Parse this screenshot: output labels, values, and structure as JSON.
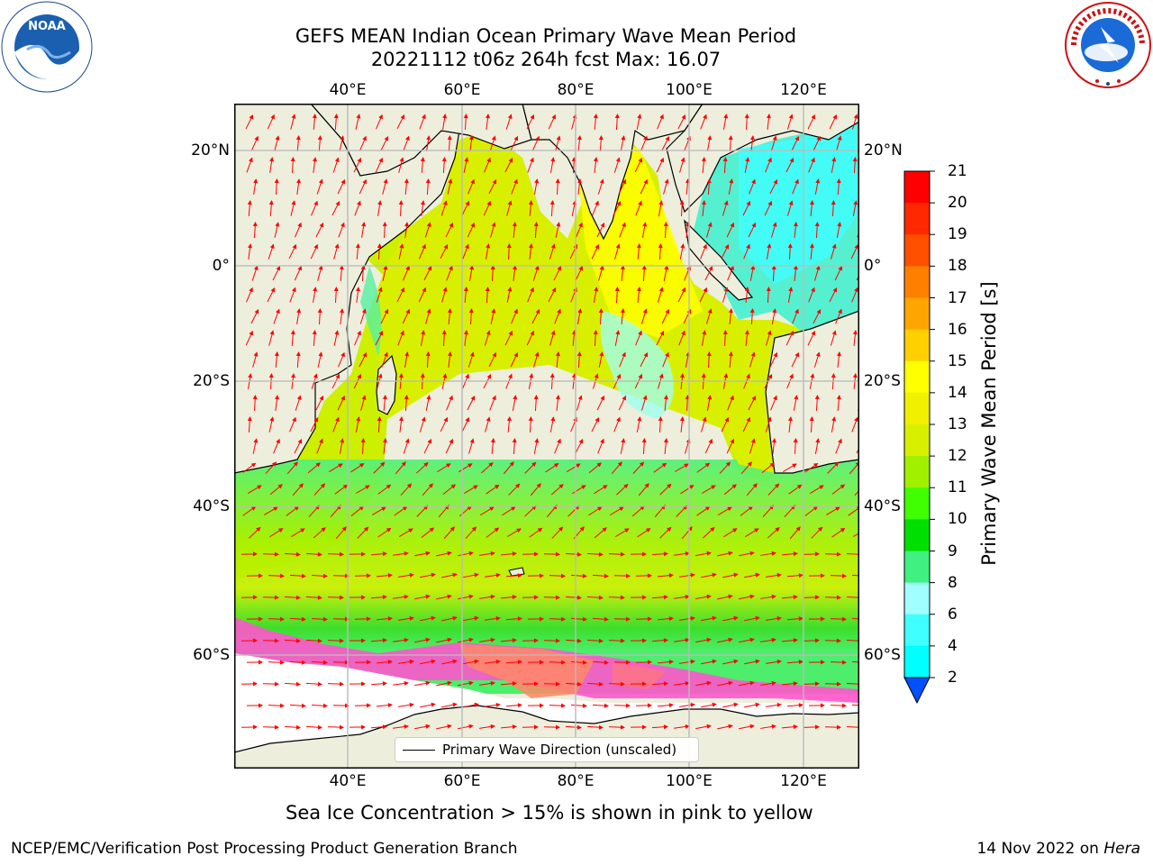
{
  "title_line1": "GEFS MEAN Indian Ocean Primary Wave Mean Period",
  "title_line2": "20221112 t06z 264h fcst   Max: 16.07",
  "chart_data": {
    "type": "map",
    "variable": "Primary Wave Mean Period",
    "units": "s",
    "max_value": 16.07,
    "lon_ticks": [
      "40°E",
      "60°E",
      "80°E",
      "100°E",
      "120°E"
    ],
    "lat_ticks": [
      "20°N",
      "0°",
      "20°S",
      "40°S",
      "60°S"
    ],
    "lon_range": [
      20,
      130
    ],
    "lat_range": [
      -70,
      28
    ],
    "grid": true,
    "colorbar": {
      "label": "Primary Wave Mean Period [s]",
      "ticks": [
        "2",
        "4",
        "6",
        "8",
        "9",
        "10",
        "11",
        "12",
        "13",
        "14",
        "15",
        "16",
        "17",
        "18",
        "19",
        "20",
        "21"
      ],
      "colors": [
        "#0050ff",
        "#00ffff",
        "#40ffff",
        "#a0ffff",
        "#40f080",
        "#00e000",
        "#40ff00",
        "#a0f000",
        "#d8f000",
        "#f0f000",
        "#ffff00",
        "#ffd000",
        "#ffa500",
        "#ff8000",
        "#ff5000",
        "#ff2800",
        "#ff0000"
      ],
      "extend": "min"
    },
    "legend": "Primary Wave Direction (unscaled)",
    "legend_placement": "bottom-center"
  },
  "caption": "Sea Ice Concentration > 15% is shown in pink to yellow",
  "footer_left": "NCEP/EMC/Verification Post Processing Product Generation Branch",
  "footer_right_prefix": "14 Nov 2022 on ",
  "footer_right_host": "Hera",
  "colors": {
    "land": "#eeeedd",
    "arrow": "#ff0000",
    "ice": "#ff55cc"
  },
  "logos": [
    "noaa-logo",
    "nws-logo"
  ]
}
